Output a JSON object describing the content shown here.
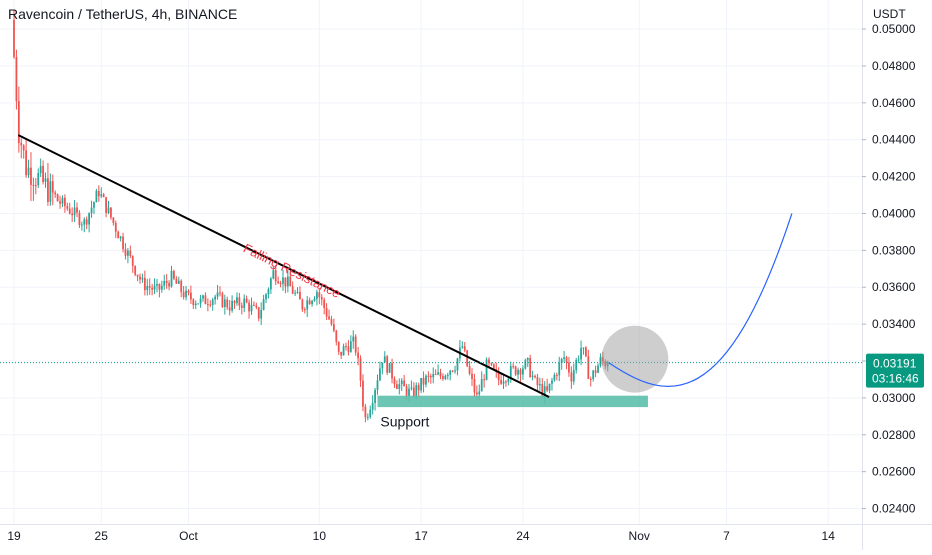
{
  "header": {
    "title": "Ravencoin / TetherUS, 4h, BINANCE"
  },
  "price_axis": {
    "unit": "USDT"
  },
  "last_price": {
    "value": "0.03191",
    "countdown": "03:16:46"
  },
  "annotations": {
    "falling_resistance": "Falling Resistance",
    "support": "Support"
  },
  "colors": {
    "up": "#26a69a",
    "down": "#ef5350",
    "trendline": "#000000",
    "support_zone": "#5dbfac",
    "projection": "#2962ff",
    "label_red": "#f23645",
    "price_badge": "#089981"
  },
  "chart_data": {
    "type": "candlestick",
    "title": "Ravencoin / TetherUS, 4h, BINANCE",
    "xlabel": "",
    "ylabel": "USDT",
    "ylim": [
      0.0232,
      0.0508
    ],
    "y_ticks": [
      "0.05000",
      "0.04800",
      "0.04600",
      "0.04400",
      "0.04200",
      "0.04000",
      "0.03800",
      "0.03600",
      "0.03400",
      "0.03200",
      "0.03000",
      "0.02800",
      "0.02600",
      "0.02400"
    ],
    "x_ticks": [
      {
        "label": "19",
        "day": 0
      },
      {
        "label": "25",
        "day": 6
      },
      {
        "label": "Oct",
        "day": 12
      },
      {
        "label": "10",
        "day": 21
      },
      {
        "label": "17",
        "day": 28
      },
      {
        "label": "24",
        "day": 35
      },
      {
        "label": "Nov",
        "day": 43
      },
      {
        "label": "7",
        "day": 49
      },
      {
        "label": "14",
        "day": 56
      }
    ],
    "price_path": [
      [
        0.0,
        0.0505
      ],
      [
        0.5,
        0.0445
      ],
      [
        1.0,
        0.0425
      ],
      [
        2.0,
        0.0418
      ],
      [
        3.0,
        0.0408
      ],
      [
        4.0,
        0.0402
      ],
      [
        5.0,
        0.0395
      ],
      [
        6.0,
        0.0412
      ],
      [
        7.0,
        0.0395
      ],
      [
        8.0,
        0.0378
      ],
      [
        9.0,
        0.0362
      ],
      [
        10.0,
        0.0358
      ],
      [
        11.0,
        0.0365
      ],
      [
        12.0,
        0.0355
      ],
      [
        13.0,
        0.0352
      ],
      [
        14.0,
        0.0355
      ],
      [
        15.0,
        0.035
      ],
      [
        16.0,
        0.0352
      ],
      [
        17.0,
        0.0345
      ],
      [
        18.0,
        0.0368
      ],
      [
        19.0,
        0.0362
      ],
      [
        20.0,
        0.035
      ],
      [
        21.0,
        0.0358
      ],
      [
        22.0,
        0.034
      ],
      [
        22.5,
        0.0323
      ],
      [
        23.0,
        0.0328
      ],
      [
        23.6,
        0.033
      ],
      [
        24.0,
        0.031
      ],
      [
        24.3,
        0.0288
      ],
      [
        24.8,
        0.03
      ],
      [
        25.5,
        0.0322
      ],
      [
        26.5,
        0.0308
      ],
      [
        27.5,
        0.0302
      ],
      [
        28.5,
        0.031
      ],
      [
        29.5,
        0.0312
      ],
      [
        30.5,
        0.0318
      ],
      [
        31.0,
        0.0328
      ],
      [
        31.5,
        0.0312
      ],
      [
        32.0,
        0.03
      ],
      [
        32.7,
        0.0318
      ],
      [
        33.5,
        0.031
      ],
      [
        34.5,
        0.0315
      ],
      [
        35.5,
        0.0318
      ],
      [
        36.0,
        0.0308
      ],
      [
        36.8,
        0.0302
      ],
      [
        37.5,
        0.0315
      ],
      [
        38.0,
        0.0322
      ],
      [
        38.5,
        0.0312
      ],
      [
        39.2,
        0.0328
      ],
      [
        39.8,
        0.031
      ],
      [
        40.5,
        0.032
      ],
      [
        40.9,
        0.0319
      ]
    ],
    "trendline": {
      "from": [
        0.3,
        0.04425
      ],
      "to": [
        36.8,
        0.03005
      ]
    },
    "support_zone": {
      "x": [
        25.0,
        43.6
      ],
      "y": [
        0.0295,
        0.03012
      ]
    },
    "projection": {
      "from": [
        40.9,
        0.03191
      ],
      "ctrl1": [
        45.0,
        0.0297
      ],
      "ctrl2": [
        49.0,
        0.0292
      ],
      "to": [
        53.5,
        0.04
      ]
    },
    "highlight_circle": {
      "center": [
        42.7,
        0.0321
      ],
      "radius_days": 2.3
    }
  }
}
